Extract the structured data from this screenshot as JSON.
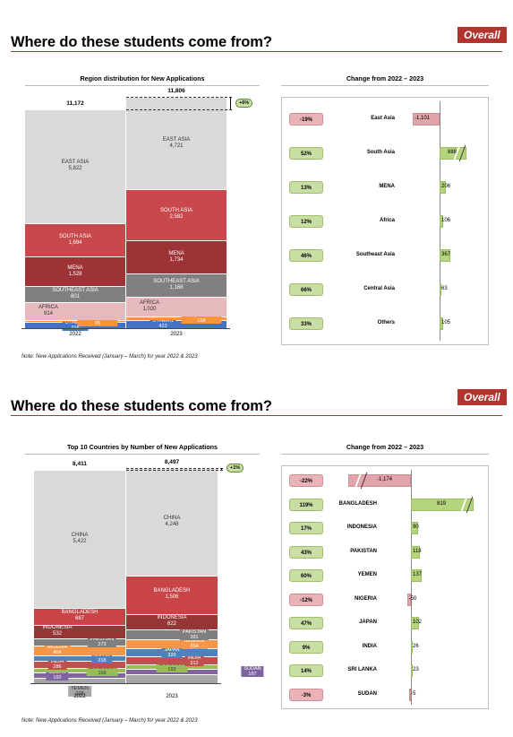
{
  "sections": [
    {
      "title": "Where do these students come from?",
      "badge": "Overall",
      "left_subtitle": "Region distribution for New Applications",
      "right_subtitle": "Change from 2022 – 2023",
      "note": "Note: New Applications Received (January – March) for year 2022 & 2023",
      "growth": "+6%"
    },
    {
      "title": "Where do these students come from?",
      "badge": "Overall",
      "left_subtitle": "Top 10 Countries by Number of New Applications",
      "right_subtitle": "Change from 2022 – 2023",
      "note": "Note: New Applications Received (January – March) for year 2022 & 2023",
      "growth": "+1%"
    }
  ],
  "chart_data": [
    {
      "type": "bar",
      "stacked": true,
      "title": "Region distribution for New Applications",
      "categories": [
        "2022",
        "2023"
      ],
      "totals": [
        "11,172",
        "11,806"
      ],
      "series": [
        {
          "name": "OTHERS",
          "values": [
            318,
            423
          ],
          "labels": [
            "318",
            "423"
          ],
          "color": "#4472c4"
        },
        {
          "name": "CENTRAL ASIA",
          "values": [
            95,
            158
          ],
          "labels": [
            "95",
            "158"
          ],
          "color": "#f7943c"
        },
        {
          "name": "AFRICA",
          "values": [
            914,
            1020
          ],
          "labels": [
            "914",
            "1,020"
          ],
          "color": "#e6b9bd"
        },
        {
          "name": "SOUTHEAST ASIA",
          "values": [
            801,
            1168
          ],
          "labels": [
            "801",
            "1,168"
          ],
          "color": "#808080"
        },
        {
          "name": "MENA",
          "values": [
            1528,
            1734
          ],
          "labels": [
            "1,528",
            "1,734"
          ],
          "color": "#9e3337"
        },
        {
          "name": "SOUTH ASIA",
          "values": [
            1694,
            2582
          ],
          "labels": [
            "1,694",
            "2,582"
          ],
          "color": "#c9484b"
        },
        {
          "name": "EAST ASIA",
          "values": [
            5822,
            4721
          ],
          "labels": [
            "5,822",
            "4,721"
          ],
          "color": "#d9d9d9"
        }
      ]
    },
    {
      "type": "bar",
      "title": "Change from 2022 – 2023",
      "categories": [
        "East Asia",
        "South Asia",
        "MENA",
        "Africa",
        "Southeast Asia",
        "Central Asia",
        "Others"
      ],
      "pct_labels": [
        "-19%",
        "52%",
        "13%",
        "12%",
        "46%",
        "66%",
        "33%"
      ],
      "values": [
        -1101,
        888,
        206,
        106,
        367,
        63,
        105
      ],
      "value_labels": [
        "-1,101",
        "888",
        "206",
        "106",
        "367",
        "63",
        "105"
      ],
      "broken": [
        false,
        true,
        false,
        false,
        false,
        false,
        false
      ]
    },
    {
      "type": "bar",
      "stacked": true,
      "title": "Top 10 Countries by Number of New Applications",
      "categories": [
        "2022",
        "2023"
      ],
      "totals": [
        "8,411",
        "8,497"
      ],
      "series": [
        {
          "name": "YEMEN",
          "values": [
            228,
            365
          ],
          "labels": [
            "228",
            "365"
          ],
          "color": "#a6a6a6"
        },
        {
          "name": "SUDAN",
          "values": [
            192,
            187
          ],
          "labels": [
            "192",
            "187"
          ],
          "color": "#8064a2"
        },
        {
          "name": "SRI LANKA",
          "values": [
            169,
            192
          ],
          "labels": [
            "169",
            "192"
          ],
          "color": "#9bbb59"
        },
        {
          "name": "INDIA",
          "values": [
            286,
            312
          ],
          "labels": [
            "286",
            "312"
          ],
          "color": "#c0504d"
        },
        {
          "name": "JAPAN",
          "values": [
            218,
            320
          ],
          "labels": [
            "218",
            "320"
          ],
          "color": "#4f81bd"
        },
        {
          "name": "NIGERIA",
          "values": [
            404,
            354
          ],
          "labels": [
            "404",
            "354"
          ],
          "color": "#f79646"
        },
        {
          "name": "PAKISTAN",
          "values": [
            273,
            391
          ],
          "labels": [
            "273",
            "391"
          ],
          "color": "#7f7f7f"
        },
        {
          "name": "INDONESIA",
          "values": [
            532,
            622
          ],
          "labels": [
            "532",
            "622"
          ],
          "color": "#953735"
        },
        {
          "name": "BANGLADESH",
          "values": [
            687,
            1506
          ],
          "labels": [
            "687",
            "1,506"
          ],
          "color": "#c94446"
        },
        {
          "name": "CHINA",
          "values": [
            5422,
            4248
          ],
          "labels": [
            "5,422",
            "4,248"
          ],
          "color": "#d9d9d9"
        }
      ]
    },
    {
      "type": "bar",
      "title": "Change from 2022 – 2023",
      "categories": [
        "CHINA",
        "BANGLADESH",
        "INDONESIA",
        "PAKISTAN",
        "YEMEN",
        "NIGERIA",
        "JAPAN",
        "INDIA",
        "SRI LANKA",
        "SUDAN"
      ],
      "pct_labels": [
        "-22%",
        "119%",
        "17%",
        "43%",
        "60%",
        "-12%",
        "47%",
        "9%",
        "14%",
        "-3%"
      ],
      "values": [
        -1174,
        819,
        90,
        118,
        137,
        -50,
        102,
        26,
        23,
        -5
      ],
      "value_labels": [
        "-1,174",
        "819",
        "90",
        "118",
        "137",
        "-50",
        "102",
        "26",
        "23",
        "-5"
      ],
      "broken": [
        true,
        true,
        false,
        false,
        false,
        false,
        false,
        false,
        false,
        false
      ]
    }
  ]
}
